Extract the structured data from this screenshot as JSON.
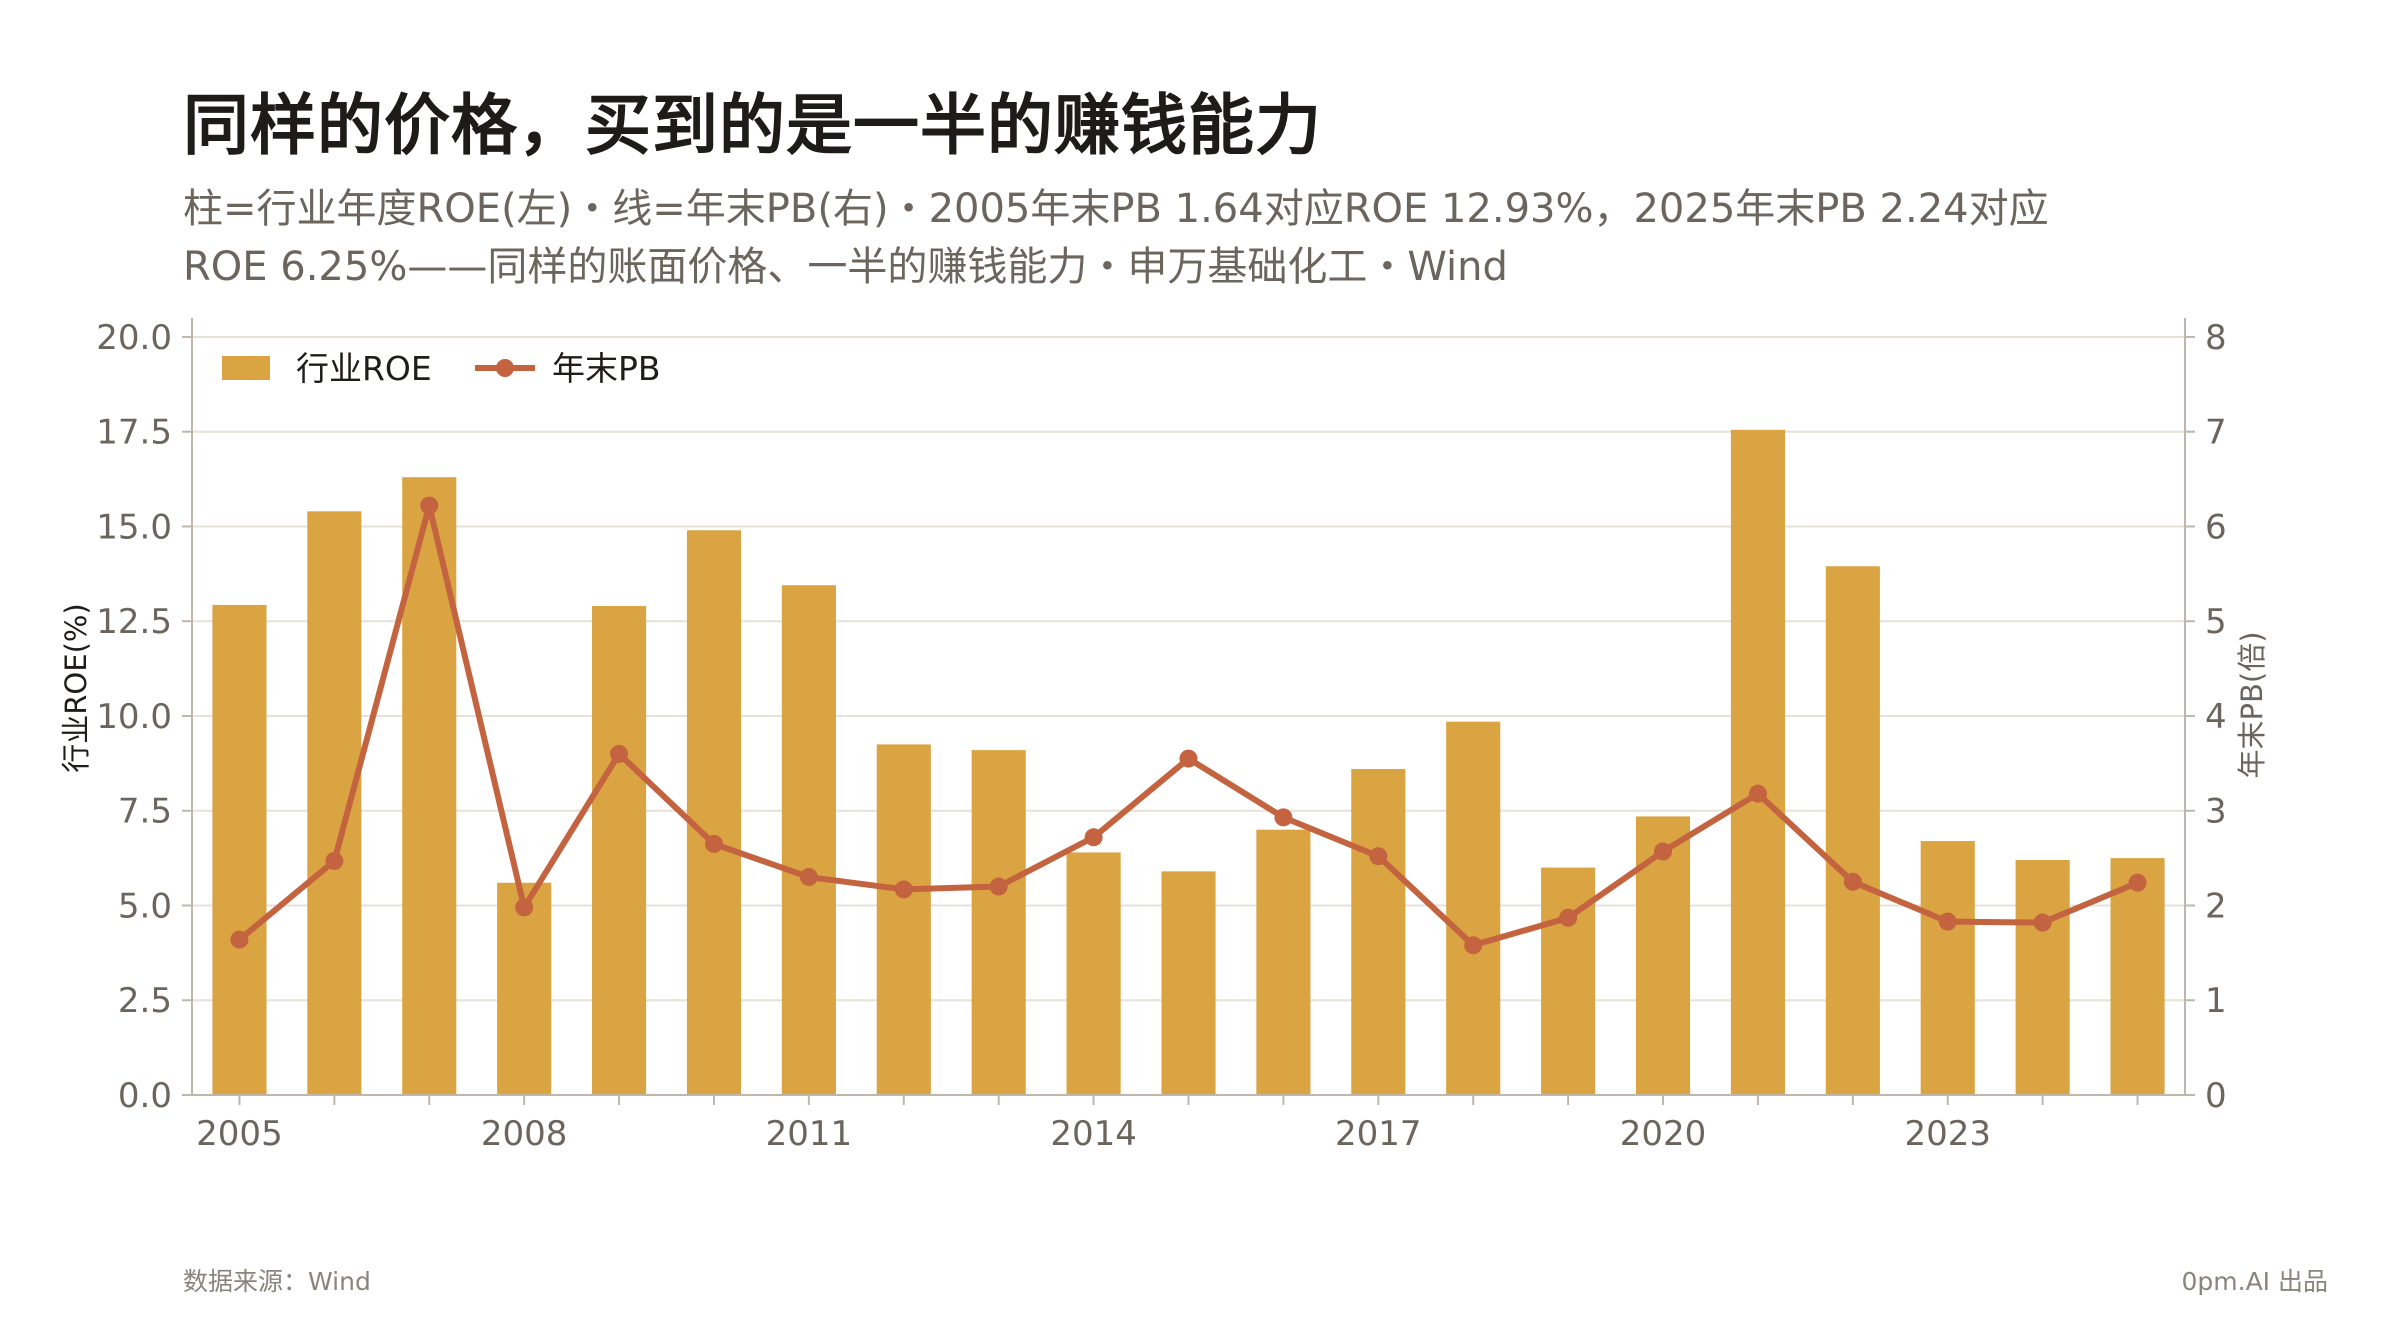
{
  "title": "同样的价格，买到的是一半的赚钱能力",
  "subtitle": "柱=行业年度ROE(左)・线=年末PB(右)・2005年末PB 1.64对应ROE 12.93%，2025年末PB 2.24对应ROE 6.25%——同样的账面价格、一半的赚钱能力・申万基础化工・Wind",
  "footer": {
    "source": "数据来源：Wind",
    "brand": "0pm.AI 出品"
  },
  "colors": {
    "bar": "#D9A441",
    "line": "#C4633F",
    "grid": "#E6E2D8",
    "axis": "#BDB7AC",
    "tick_text": "#6b655e"
  },
  "chart_data": {
    "type": "bar",
    "x": [
      2005,
      2006,
      2007,
      2008,
      2009,
      2010,
      2011,
      2012,
      2013,
      2014,
      2015,
      2016,
      2017,
      2018,
      2019,
      2020,
      2021,
      2022,
      2023,
      2024,
      2025
    ],
    "xticks": [
      "2005",
      "2008",
      "2011",
      "2014",
      "2017",
      "2020",
      "2023"
    ],
    "series": [
      {
        "name": "行业ROE",
        "type": "bar",
        "axis": "left",
        "values": [
          12.93,
          15.4,
          16.3,
          5.6,
          12.9,
          14.9,
          13.45,
          9.25,
          9.1,
          6.4,
          5.9,
          7.0,
          8.6,
          9.85,
          6.0,
          7.35,
          17.55,
          13.95,
          6.7,
          6.2,
          6.25
        ]
      },
      {
        "name": "年末PB",
        "type": "line",
        "axis": "right",
        "values": [
          1.64,
          2.47,
          6.22,
          1.98,
          3.6,
          2.65,
          2.3,
          2.17,
          2.2,
          2.72,
          3.55,
          2.93,
          2.52,
          1.58,
          1.87,
          2.57,
          3.18,
          2.25,
          1.83,
          1.82,
          2.24
        ]
      }
    ],
    "ylabel": "行业ROE(%)",
    "ylim": [
      0,
      20.5
    ],
    "yticks": [
      "0.0",
      "2.5",
      "5.0",
      "7.5",
      "10.0",
      "12.5",
      "15.0",
      "17.5",
      "20.0"
    ],
    "y2label": "年末PB(倍)",
    "y2lim": [
      0,
      8.2
    ],
    "y2ticks": [
      "0",
      "1",
      "2",
      "3",
      "4",
      "5",
      "6",
      "7",
      "8"
    ],
    "legend": "top-left",
    "grid": true
  }
}
